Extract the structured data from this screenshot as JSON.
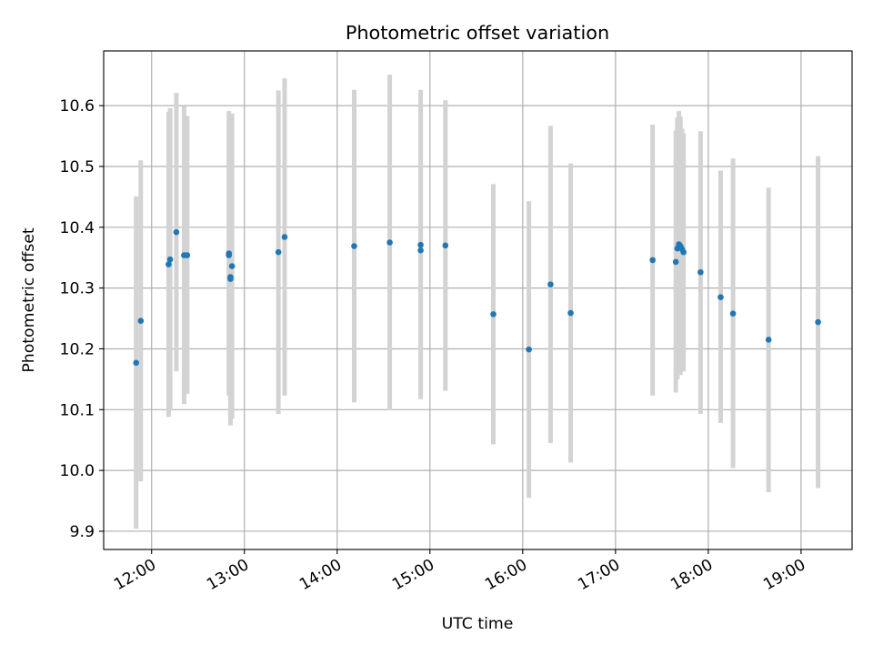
{
  "chart_data": {
    "type": "scatter",
    "title": "Photometric offset variation",
    "xlabel": "UTC time",
    "ylabel": "Photometric offset",
    "x_format": "HH:MM",
    "xlim": [
      "11:29",
      "19:33"
    ],
    "ylim": [
      9.87,
      10.69
    ],
    "x_ticks": [
      "12:00",
      "13:00",
      "14:00",
      "15:00",
      "16:00",
      "17:00",
      "18:00",
      "19:00"
    ],
    "y_ticks": [
      "9.9",
      "10.0",
      "10.1",
      "10.2",
      "10.3",
      "10.4",
      "10.5",
      "10.6"
    ],
    "grid": true,
    "colors": {
      "marker": "#1f77b4",
      "errorbar": "#d3d3d3",
      "grid": "#b0b0b0"
    },
    "points": [
      {
        "x": "11:50",
        "y": 10.177,
        "lo": 9.904,
        "hi": 10.451
      },
      {
        "x": "11:53",
        "y": 10.246,
        "lo": 9.982,
        "hi": 10.51
      },
      {
        "x": "12:11",
        "y": 10.339,
        "lo": 10.088,
        "hi": 10.59
      },
      {
        "x": "12:12",
        "y": 10.347,
        "lo": 10.098,
        "hi": 10.596
      },
      {
        "x": "12:16",
        "y": 10.392,
        "lo": 10.163,
        "hi": 10.621
      },
      {
        "x": "12:21",
        "y": 10.354,
        "lo": 10.109,
        "hi": 10.599
      },
      {
        "x": "12:23",
        "y": 10.354,
        "lo": 10.126,
        "hi": 10.583
      },
      {
        "x": "12:50",
        "y": 10.354,
        "lo": 10.135,
        "hi": 10.573
      },
      {
        "x": "12:50",
        "y": 10.357,
        "lo": 10.123,
        "hi": 10.591
      },
      {
        "x": "12:51",
        "y": 10.318,
        "lo": 10.085,
        "hi": 10.551
      },
      {
        "x": "12:51",
        "y": 10.315,
        "lo": 10.074,
        "hi": 10.556
      },
      {
        "x": "12:52",
        "y": 10.336,
        "lo": 10.085,
        "hi": 10.587
      },
      {
        "x": "13:22",
        "y": 10.359,
        "lo": 10.093,
        "hi": 10.625
      },
      {
        "x": "13:26",
        "y": 10.384,
        "lo": 10.123,
        "hi": 10.645
      },
      {
        "x": "14:11",
        "y": 10.369,
        "lo": 10.112,
        "hi": 10.626
      },
      {
        "x": "14:34",
        "y": 10.375,
        "lo": 10.099,
        "hi": 10.651
      },
      {
        "x": "14:54",
        "y": 10.371,
        "lo": 10.117,
        "hi": 10.626
      },
      {
        "x": "14:54",
        "y": 10.362,
        "lo": 10.124,
        "hi": 10.6
      },
      {
        "x": "15:10",
        "y": 10.37,
        "lo": 10.131,
        "hi": 10.609
      },
      {
        "x": "15:41",
        "y": 10.257,
        "lo": 10.043,
        "hi": 10.471
      },
      {
        "x": "16:04",
        "y": 10.199,
        "lo": 9.955,
        "hi": 10.443
      },
      {
        "x": "16:18",
        "y": 10.306,
        "lo": 10.045,
        "hi": 10.567
      },
      {
        "x": "16:31",
        "y": 10.259,
        "lo": 10.013,
        "hi": 10.505
      },
      {
        "x": "17:24",
        "y": 10.346,
        "lo": 10.123,
        "hi": 10.569
      },
      {
        "x": "17:39",
        "y": 10.343,
        "lo": 10.128,
        "hi": 10.559
      },
      {
        "x": "17:40",
        "y": 10.365,
        "lo": 10.15,
        "hi": 10.581
      },
      {
        "x": "17:41",
        "y": 10.372,
        "lo": 10.16,
        "hi": 10.591
      },
      {
        "x": "17:42",
        "y": 10.369,
        "lo": 10.157,
        "hi": 10.582
      },
      {
        "x": "17:43",
        "y": 10.364,
        "lo": 10.167,
        "hi": 10.562
      },
      {
        "x": "17:44",
        "y": 10.359,
        "lo": 10.163,
        "hi": 10.555
      },
      {
        "x": "17:55",
        "y": 10.326,
        "lo": 10.093,
        "hi": 10.558
      },
      {
        "x": "18:08",
        "y": 10.285,
        "lo": 10.078,
        "hi": 10.493
      },
      {
        "x": "18:16",
        "y": 10.258,
        "lo": 10.004,
        "hi": 10.513
      },
      {
        "x": "18:39",
        "y": 10.215,
        "lo": 9.964,
        "hi": 10.465
      },
      {
        "x": "19:11",
        "y": 10.244,
        "lo": 9.971,
        "hi": 10.517
      }
    ]
  }
}
